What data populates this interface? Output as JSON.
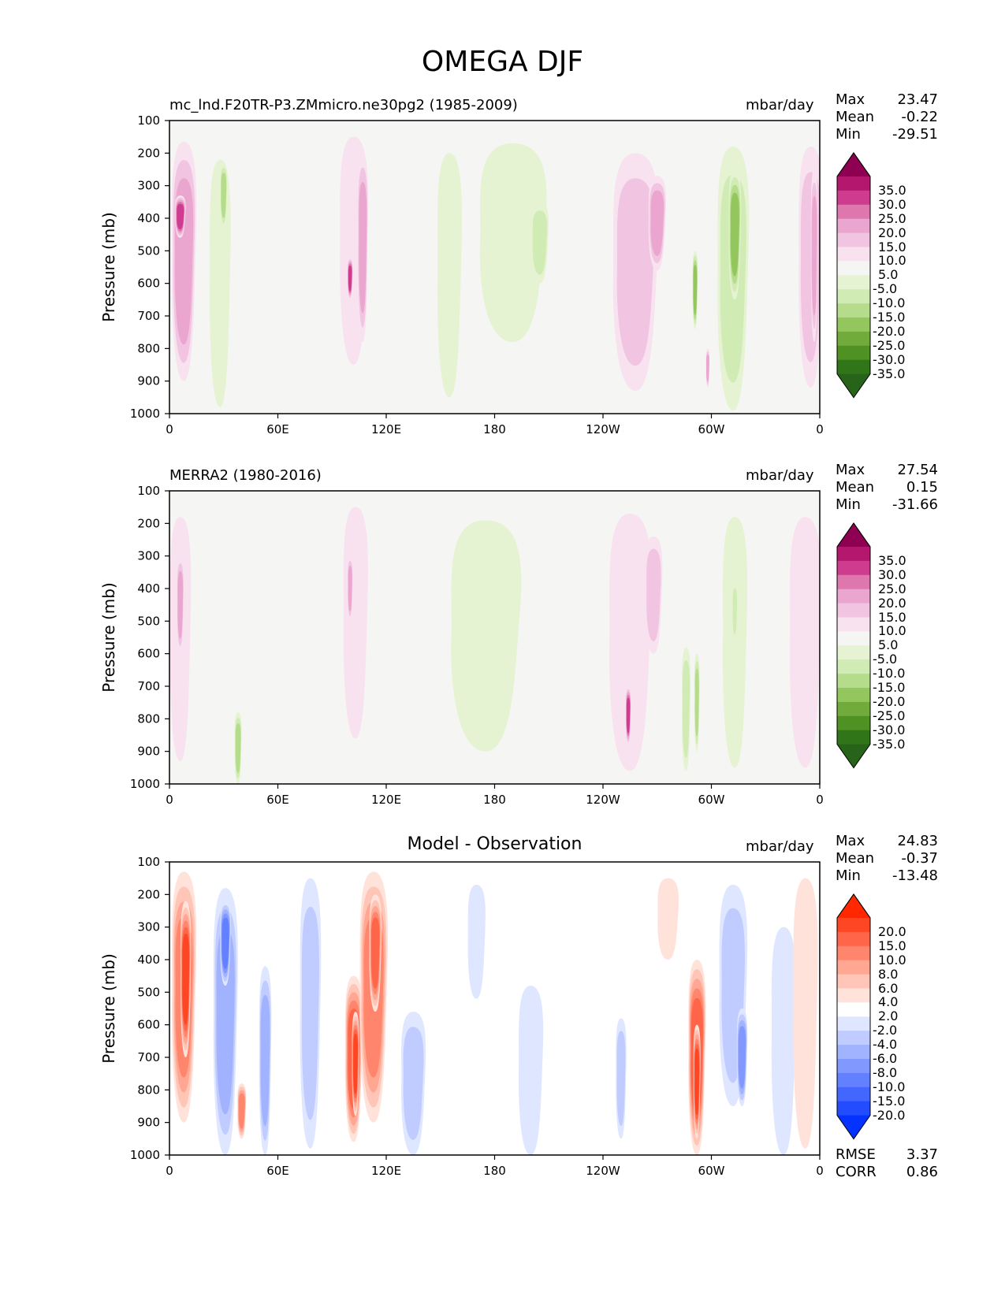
{
  "figure_title": "OMEGA DJF",
  "chart_data": [
    {
      "type": "heatmap",
      "title": "mc_lnd.F20TR-P3.ZMmicro.ne30pg2 (1985-2009)",
      "units": "mbar/day",
      "ylabel": "Pressure (mb)",
      "x_ticks": [
        "0",
        "60E",
        "120E",
        "180",
        "120W",
        "60W",
        "0"
      ],
      "y_ticks": [
        "100",
        "200",
        "300",
        "400",
        "500",
        "600",
        "700",
        "800",
        "900",
        "1000"
      ],
      "ylim": [
        1000,
        100
      ],
      "xlim": [
        0,
        360
      ],
      "stats": {
        "max_label": "Max",
        "max": "23.47",
        "mean_label": "Mean",
        "mean": "-0.22",
        "min_label": "Min",
        "min": "-29.51"
      },
      "colorbar_levels": [
        "35.0",
        "30.0",
        "25.0",
        "20.0",
        "15.0",
        "10.0",
        "5.0",
        "-5.0",
        "-10.0",
        "-15.0",
        "-20.0",
        "-25.0",
        "-30.0",
        "-35.0"
      ],
      "colorbar_colors": [
        "#8e0152",
        "#b3186e",
        "#cf3c8f",
        "#de77ae",
        "#eaa6cf",
        "#f1c5e1",
        "#f8e2ef",
        "#f5f6f3",
        "#e5f3d3",
        "#d1ebb4",
        "#b5dc8a",
        "#93c75e",
        "#70ab3c",
        "#4f9123",
        "#317519",
        "#276419"
      ],
      "features": [
        {
          "lon": 8,
          "p_top": 165,
          "p_bot": 900,
          "width": 14,
          "value": 18
        },
        {
          "lon": 6,
          "p_top": 330,
          "p_bot": 460,
          "width": 6,
          "value": 27
        },
        {
          "lon": 28,
          "p_top": 220,
          "p_bot": 980,
          "width": 12,
          "value": -9
        },
        {
          "lon": 30,
          "p_top": 230,
          "p_bot": 430,
          "width": 4,
          "value": -16
        },
        {
          "lon": 102,
          "p_top": 150,
          "p_bot": 850,
          "width": 16,
          "value": 8
        },
        {
          "lon": 107,
          "p_top": 200,
          "p_bot": 780,
          "width": 6,
          "value": 17
        },
        {
          "lon": 100,
          "p_top": 520,
          "p_bot": 650,
          "width": 3,
          "value": 27
        },
        {
          "lon": 155,
          "p_top": 200,
          "p_bot": 950,
          "width": 14,
          "value": -7
        },
        {
          "lon": 190,
          "p_top": 170,
          "p_bot": 780,
          "width": 38,
          "value": -8
        },
        {
          "lon": 205,
          "p_top": 350,
          "p_bot": 600,
          "width": 10,
          "value": -13
        },
        {
          "lon": 258,
          "p_top": 200,
          "p_bot": 930,
          "width": 26,
          "value": 10
        },
        {
          "lon": 270,
          "p_top": 270,
          "p_bot": 560,
          "width": 10,
          "value": 18
        },
        {
          "lon": 291,
          "p_top": 500,
          "p_bot": 740,
          "width": 3,
          "value": -24
        },
        {
          "lon": 298,
          "p_top": 800,
          "p_bot": 920,
          "width": 2,
          "value": 16
        },
        {
          "lon": 312,
          "p_top": 180,
          "p_bot": 990,
          "width": 18,
          "value": -10
        },
        {
          "lon": 313,
          "p_top": 250,
          "p_bot": 650,
          "width": 7,
          "value": -21
        },
        {
          "lon": 355,
          "p_top": 180,
          "p_bot": 920,
          "width": 14,
          "value": 10
        },
        {
          "lon": 357,
          "p_top": 250,
          "p_bot": 780,
          "width": 4,
          "value": 17
        }
      ]
    },
    {
      "type": "heatmap",
      "title": "MERRA2 (1980-2016)",
      "units": "mbar/day",
      "ylabel": "Pressure (mb)",
      "x_ticks": [
        "0",
        "60E",
        "120E",
        "180",
        "120W",
        "60W",
        "0"
      ],
      "y_ticks": [
        "100",
        "200",
        "300",
        "400",
        "500",
        "600",
        "700",
        "800",
        "900",
        "1000"
      ],
      "ylim": [
        1000,
        100
      ],
      "xlim": [
        0,
        360
      ],
      "stats": {
        "max_label": "Max",
        "max": "27.54",
        "mean_label": "Mean",
        "mean": "0.15",
        "min_label": "Min",
        "min": "-31.66"
      },
      "colorbar_levels": [
        "35.0",
        "30.0",
        "25.0",
        "20.0",
        "15.0",
        "10.0",
        "5.0",
        "-5.0",
        "-10.0",
        "-15.0",
        "-20.0",
        "-25.0",
        "-30.0",
        "-35.0"
      ],
      "colorbar_colors": [
        "#8e0152",
        "#b3186e",
        "#cf3c8f",
        "#de77ae",
        "#eaa6cf",
        "#f1c5e1",
        "#f8e2ef",
        "#f5f6f3",
        "#e5f3d3",
        "#d1ebb4",
        "#b5dc8a",
        "#93c75e",
        "#70ab3c",
        "#4f9123",
        "#317519",
        "#276419"
      ],
      "features": [
        {
          "lon": 6,
          "p_top": 180,
          "p_bot": 930,
          "width": 12,
          "value": 9
        },
        {
          "lon": 6,
          "p_top": 300,
          "p_bot": 600,
          "width": 4,
          "value": 16
        },
        {
          "lon": 38,
          "p_top": 780,
          "p_bot": 1000,
          "width": 4,
          "value": -16
        },
        {
          "lon": 103,
          "p_top": 150,
          "p_bot": 860,
          "width": 14,
          "value": 8
        },
        {
          "lon": 100,
          "p_top": 300,
          "p_bot": 500,
          "width": 3,
          "value": 17
        },
        {
          "lon": 175,
          "p_top": 190,
          "p_bot": 900,
          "width": 40,
          "value": -7
        },
        {
          "lon": 255,
          "p_top": 170,
          "p_bot": 960,
          "width": 24,
          "value": 9
        },
        {
          "lon": 268,
          "p_top": 240,
          "p_bot": 600,
          "width": 10,
          "value": 13
        },
        {
          "lon": 254,
          "p_top": 700,
          "p_bot": 880,
          "width": 3,
          "value": 28
        },
        {
          "lon": 286,
          "p_top": 580,
          "p_bot": 960,
          "width": 5,
          "value": -14
        },
        {
          "lon": 292,
          "p_top": 600,
          "p_bot": 900,
          "width": 3,
          "value": -19
        },
        {
          "lon": 313,
          "p_top": 180,
          "p_bot": 950,
          "width": 14,
          "value": -8
        },
        {
          "lon": 313,
          "p_top": 380,
          "p_bot": 560,
          "width": 3,
          "value": -14
        },
        {
          "lon": 352,
          "p_top": 180,
          "p_bot": 950,
          "width": 18,
          "value": 8
        }
      ]
    },
    {
      "type": "heatmap",
      "title": "Model - Observation",
      "units": "mbar/day",
      "ylabel": "Pressure (mb)",
      "x_ticks": [
        "0",
        "60E",
        "120E",
        "180",
        "120W",
        "60W",
        "0"
      ],
      "y_ticks": [
        "100",
        "200",
        "300",
        "400",
        "500",
        "600",
        "700",
        "800",
        "900",
        "1000"
      ],
      "ylim": [
        1000,
        100
      ],
      "xlim": [
        0,
        360
      ],
      "stats": {
        "max_label": "Max",
        "max": "24.83",
        "mean_label": "Mean",
        "mean": "-0.37",
        "min_label": "Min",
        "min": "-13.48"
      },
      "colorbar_levels": [
        "20.0",
        "15.0",
        "10.0",
        "8.0",
        "6.0",
        "4.0",
        "2.0",
        "-2.0",
        "-4.0",
        "-6.0",
        "-8.0",
        "-10.0",
        "-15.0",
        "-20.0"
      ],
      "colorbar_colors": [
        "#ff2800",
        "#ff4624",
        "#ff6549",
        "#ff866d",
        "#ffa792",
        "#ffc5b7",
        "#ffe3db",
        "#ffffff",
        "#dfe6ff",
        "#c0ccff",
        "#a1b3ff",
        "#8199ff",
        "#6280ff",
        "#4366ff",
        "#244cff",
        "#0432ff"
      ],
      "features": [
        {
          "lon": 8,
          "p_top": 130,
          "p_bot": 900,
          "width": 14,
          "value": 8
        },
        {
          "lon": 9,
          "p_top": 220,
          "p_bot": 700,
          "width": 6,
          "value": 16
        },
        {
          "lon": 31,
          "p_top": 180,
          "p_bot": 1000,
          "width": 14,
          "value": -6
        },
        {
          "lon": 31,
          "p_top": 220,
          "p_bot": 480,
          "width": 6,
          "value": -13
        },
        {
          "lon": 40,
          "p_top": 780,
          "p_bot": 950,
          "width": 5,
          "value": 9
        },
        {
          "lon": 53,
          "p_top": 420,
          "p_bot": 1000,
          "width": 7,
          "value": -7
        },
        {
          "lon": 78,
          "p_top": 150,
          "p_bot": 980,
          "width": 12,
          "value": -4
        },
        {
          "lon": 102,
          "p_top": 450,
          "p_bot": 960,
          "width": 10,
          "value": 11
        },
        {
          "lon": 103,
          "p_top": 560,
          "p_bot": 880,
          "width": 4,
          "value": 17
        },
        {
          "lon": 113,
          "p_top": 130,
          "p_bot": 900,
          "width": 16,
          "value": 9
        },
        {
          "lon": 114,
          "p_top": 200,
          "p_bot": 560,
          "width": 7,
          "value": 14
        },
        {
          "lon": 135,
          "p_top": 560,
          "p_bot": 1000,
          "width": 14,
          "value": -5
        },
        {
          "lon": 170,
          "p_top": 170,
          "p_bot": 520,
          "width": 10,
          "value": -3
        },
        {
          "lon": 200,
          "p_top": 480,
          "p_bot": 1000,
          "width": 14,
          "value": -3
        },
        {
          "lon": 250,
          "p_top": 580,
          "p_bot": 950,
          "width": 6,
          "value": -5
        },
        {
          "lon": 276,
          "p_top": 150,
          "p_bot": 400,
          "width": 12,
          "value": 3
        },
        {
          "lon": 292,
          "p_top": 400,
          "p_bot": 1000,
          "width": 10,
          "value": 11
        },
        {
          "lon": 292,
          "p_top": 600,
          "p_bot": 950,
          "width": 4,
          "value": 17
        },
        {
          "lon": 312,
          "p_top": 170,
          "p_bot": 850,
          "width": 16,
          "value": -5
        },
        {
          "lon": 317,
          "p_top": 550,
          "p_bot": 850,
          "width": 6,
          "value": -9
        },
        {
          "lon": 340,
          "p_top": 300,
          "p_bot": 1000,
          "width": 14,
          "value": -3
        },
        {
          "lon": 352,
          "p_top": 150,
          "p_bot": 980,
          "width": 14,
          "value": 3
        }
      ],
      "metrics": {
        "rmse_label": "RMSE",
        "rmse": "3.37",
        "corr_label": "CORR",
        "corr": "0.86"
      }
    }
  ]
}
